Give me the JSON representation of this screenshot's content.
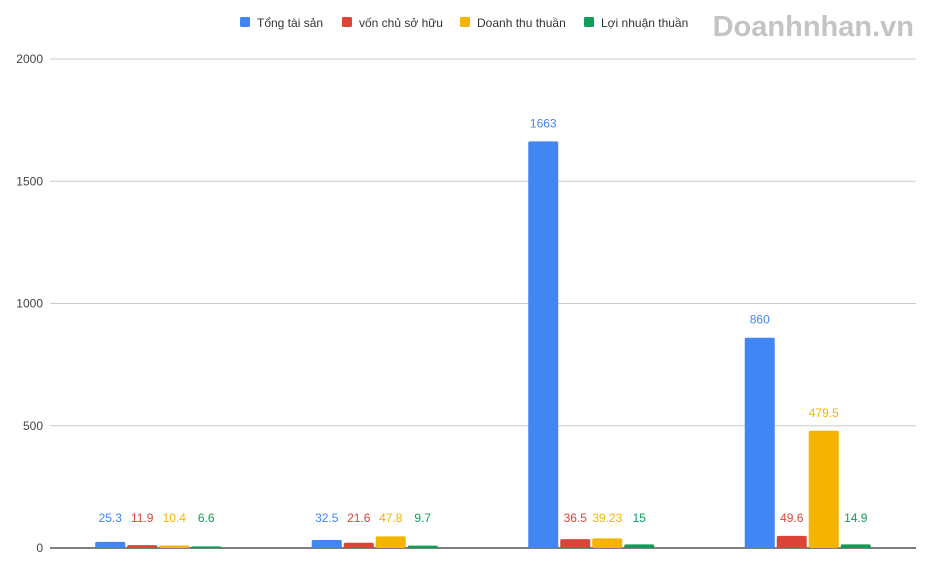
{
  "brand": {
    "logo_text": "Doanhnhan.vn",
    "logo_color": "#c4c4c4",
    "logo_accent": "#e53935"
  },
  "chart_data": {
    "type": "bar",
    "categories": [
      "",
      "",
      "",
      ""
    ],
    "series": [
      {
        "name": "Tổng tài sản",
        "color": "#4285f4",
        "values": [
          25.3,
          32.5,
          1663,
          860
        ],
        "labels": [
          "25.3",
          "32.5",
          "1663",
          "860"
        ]
      },
      {
        "name": "vốn chủ sở hữu",
        "color": "#db4437",
        "values": [
          11.9,
          21.6,
          36.5,
          49.6
        ],
        "labels": [
          "11.9",
          "21.6",
          "36.5",
          "49.6"
        ]
      },
      {
        "name": "Doanh thu thuần",
        "color": "#f4b400",
        "values": [
          10.4,
          47.8,
          39.23,
          479.5
        ],
        "labels": [
          "10.4",
          "47.8",
          "39.23",
          "479.5"
        ]
      },
      {
        "name": "Lợi nhuận thuần",
        "color": "#0f9d58",
        "values": [
          6.6,
          9.7,
          15,
          14.9
        ],
        "labels": [
          "6.6",
          "9.7",
          "15",
          "14.9"
        ]
      }
    ],
    "ylim": [
      0,
      2000
    ],
    "yticks": [
      0,
      500,
      1000,
      1500,
      2000
    ],
    "title": "",
    "xlabel": "",
    "ylabel": "",
    "grid": true,
    "legend_position": "top-right"
  }
}
